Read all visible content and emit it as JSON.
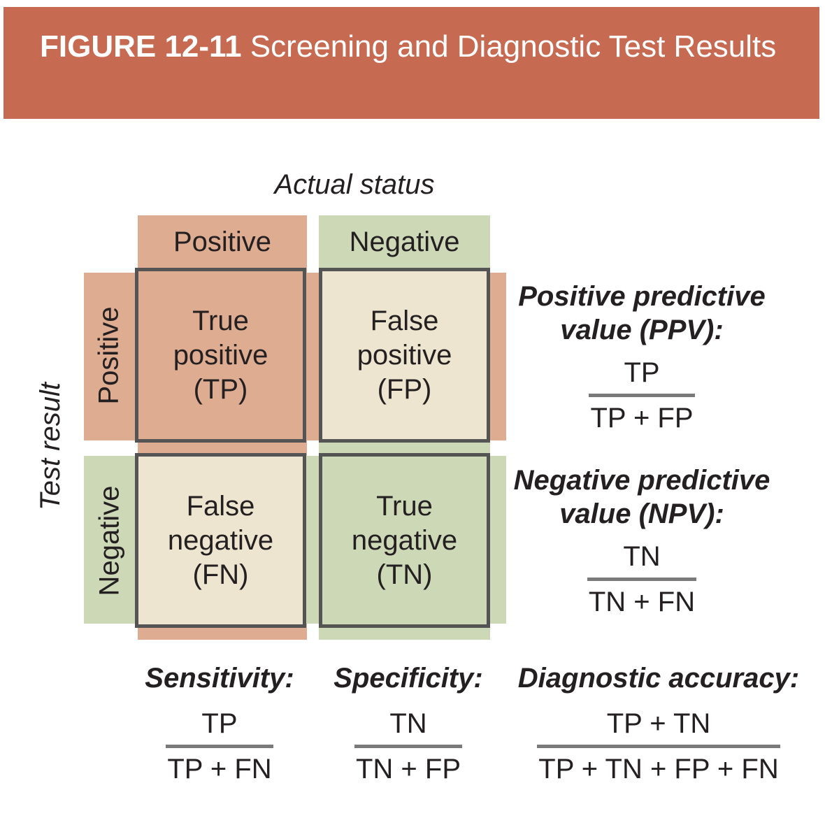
{
  "figure": {
    "label": "FIGURE 12-11",
    "title": " Screening and Diagnostic Test Results"
  },
  "matrix": {
    "column_axis": "Actual status",
    "row_axis": "Test result",
    "columns": [
      {
        "label": "Positive"
      },
      {
        "label": "Negative"
      }
    ],
    "rows": [
      {
        "label": "Positive"
      },
      {
        "label": "Negative"
      }
    ],
    "cells": {
      "tp": {
        "lines": [
          "True",
          "positive",
          "(TP)"
        ]
      },
      "fp": {
        "lines": [
          "False",
          "positive",
          "(FP)"
        ]
      },
      "fn": {
        "lines": [
          "False",
          "negative",
          "(FN)"
        ]
      },
      "tn": {
        "lines": [
          "True",
          "negative",
          "(TN)"
        ]
      }
    }
  },
  "formulas": {
    "ppv": {
      "label_line1": "Positive predictive",
      "label_line2": "value (PPV):",
      "numerator": "TP",
      "denominator": "TP + FP"
    },
    "npv": {
      "label_line1": "Negative predictive",
      "label_line2": "value (NPV):",
      "numerator": "TN",
      "denominator": "TN + FN"
    },
    "sensitivity": {
      "label": "Sensitivity:",
      "numerator": "TP",
      "denominator": "TP + FN"
    },
    "specificity": {
      "label": "Specificity:",
      "numerator": "TN",
      "denominator": "TN + FP"
    },
    "accuracy": {
      "label": "Diagnostic accuracy:",
      "numerator": "TP + TN",
      "denominator": "TP + TN + FP + FN"
    }
  },
  "colors": {
    "header_bar": "#C76A52",
    "positive_band": "#DEAC90",
    "negative_band": "#CDD8B7",
    "neutral_cell": "#EDE5CF",
    "cell_border": "#545454",
    "text": "#242021",
    "title_text": "#FFFFFF",
    "fraction_bar": "#7A7A7A"
  }
}
